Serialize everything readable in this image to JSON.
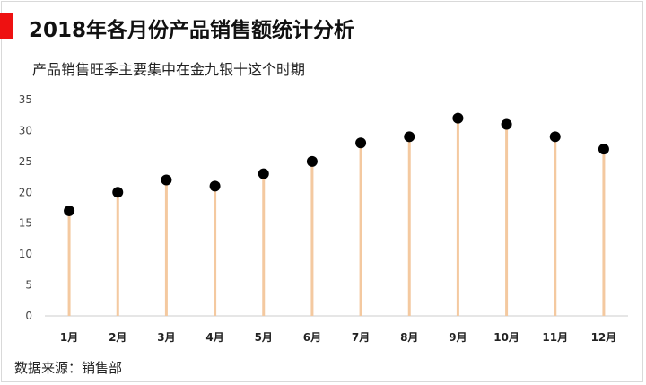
{
  "header": {
    "title": "2018年各月份产品销售额统计分析",
    "subtitle": "产品销售旺季主要集中在金九银十这个时期"
  },
  "footer": {
    "source": "数据来源：销售部"
  },
  "colors": {
    "accent": "#ee1111",
    "stem": "#f4c9a0",
    "dot": "#000000",
    "axis": "#cccccc"
  },
  "chart_data": {
    "type": "lollipop",
    "title": "2018年各月份产品销售额统计分析",
    "subtitle": "产品销售旺季主要集中在金九银十这个时期",
    "categories": [
      "1月",
      "2月",
      "3月",
      "4月",
      "5月",
      "6月",
      "7月",
      "8月",
      "9月",
      "10月",
      "11月",
      "12月"
    ],
    "values": [
      17,
      20,
      22,
      21,
      23,
      25,
      28,
      29,
      32,
      31,
      29,
      27
    ],
    "ylim": [
      0,
      35
    ],
    "yticks": [
      0,
      5,
      10,
      15,
      20,
      25,
      30,
      35
    ],
    "grid": false,
    "legend": "none"
  }
}
